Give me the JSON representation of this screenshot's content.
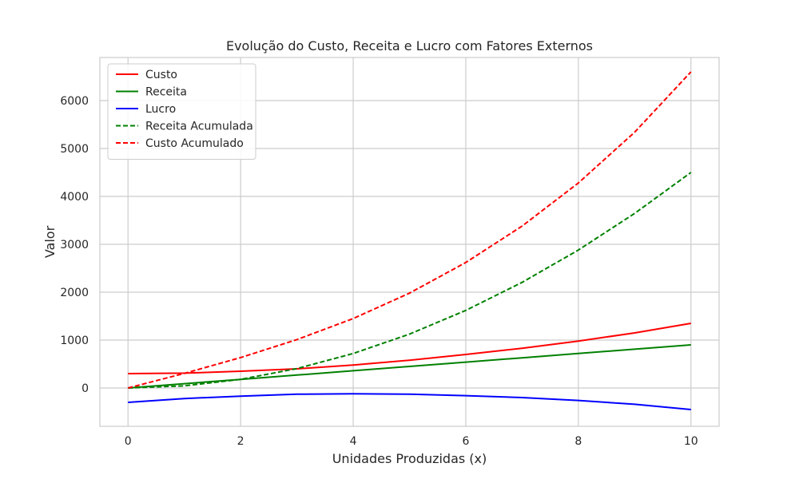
{
  "chart_data": {
    "type": "line",
    "title": "Evolução do Custo, Receita e Lucro com Fatores Externos",
    "xlabel": "Unidades Produzidas (x)",
    "ylabel": "Valor",
    "xlim": [
      -0.5,
      10.5
    ],
    "ylim": [
      -800,
      6900
    ],
    "xticks": [
      0,
      2,
      4,
      6,
      8,
      10
    ],
    "yticks": [
      0,
      1000,
      2000,
      3000,
      4000,
      5000,
      6000
    ],
    "grid": true,
    "legend_position": "upper-left",
    "x": [
      0,
      1,
      2,
      3,
      4,
      5,
      6,
      7,
      8,
      9,
      10
    ],
    "series": [
      {
        "name": "Custo",
        "color": "#ff0000",
        "style": "solid",
        "values": [
          300,
          310,
          350,
          400,
          480,
          580,
          700,
          830,
          980,
          1150,
          1350
        ]
      },
      {
        "name": "Receita",
        "color": "#008000",
        "style": "solid",
        "values": [
          0,
          90,
          180,
          270,
          360,
          450,
          540,
          630,
          720,
          810,
          900
        ]
      },
      {
        "name": "Lucro",
        "color": "#0000ff",
        "style": "solid",
        "values": [
          -300,
          -220,
          -170,
          -130,
          -120,
          -130,
          -160,
          -200,
          -260,
          -340,
          -450
        ]
      },
      {
        "name": "Receita Acumulada",
        "color": "#008000",
        "style": "dashed",
        "values": [
          0,
          45,
          180,
          405,
          720,
          1125,
          1620,
          2205,
          2880,
          3645,
          4500
        ]
      },
      {
        "name": "Custo Acumulado",
        "color": "#ff0000",
        "style": "dashed",
        "values": [
          0,
          305,
          635,
          1010,
          1450,
          1980,
          2620,
          3380,
          4280,
          5340,
          6600
        ]
      }
    ]
  }
}
